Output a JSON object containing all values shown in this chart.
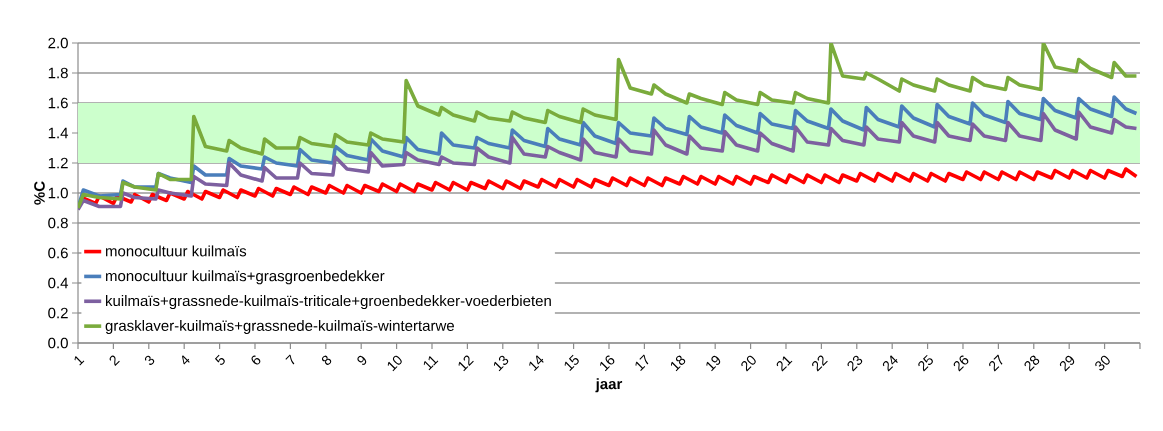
{
  "chart_data": {
    "type": "line",
    "xlabel": "jaar",
    "ylabel": "%C",
    "xlim": [
      1,
      31
    ],
    "xticks": [
      1,
      2,
      3,
      4,
      5,
      6,
      7,
      8,
      9,
      10,
      11,
      12,
      13,
      14,
      15,
      16,
      17,
      18,
      19,
      20,
      21,
      22,
      23,
      24,
      25,
      26,
      27,
      28,
      29,
      30,
      {
        "value": 31,
        "label": null
      }
    ],
    "ylim": [
      0,
      2
    ],
    "yticks": [
      {
        "value": 0,
        "label": "0.0"
      },
      {
        "value": 0.2,
        "label": "0.2"
      },
      {
        "value": 0.4,
        "label": "0.4"
      },
      {
        "value": 0.6,
        "label": "0.6"
      },
      {
        "value": 0.8,
        "label": "0.8"
      },
      {
        "value": 1.0,
        "label": "1.0"
      },
      {
        "value": 1.2,
        "label": "1.2"
      },
      {
        "value": 1.4,
        "label": "1.4"
      },
      {
        "value": 1.6,
        "label": "1.6"
      },
      {
        "value": 1.8,
        "label": "1.8"
      },
      {
        "value": 2.0,
        "label": "2.0"
      }
    ],
    "grid": "y",
    "legend": "bottom left",
    "marker": "none",
    "bands": [
      {
        "axis": "y",
        "from": 1.2,
        "to": 1.6,
        "color": "#ccffcc"
      }
    ],
    "series": [
      {
        "name": "monocultuur kuilmaïs",
        "color": "#ff0000",
        "x": [
          1.1,
          1.5,
          1.6,
          2.0,
          2.1,
          2.5,
          2.6,
          3.0,
          3.1,
          3.5,
          3.6,
          4.0,
          4.1,
          4.5,
          4.6,
          5.0,
          5.1,
          5.5,
          5.6,
          6.0,
          6.1,
          6.5,
          6.6,
          7.0,
          7.1,
          7.5,
          7.6,
          8.0,
          8.1,
          8.5,
          8.6,
          9.0,
          9.1,
          9.5,
          9.6,
          10.0,
          10.1,
          10.5,
          10.6,
          11.0,
          11.1,
          11.5,
          11.6,
          12.0,
          12.1,
          12.5,
          12.6,
          13.0,
          13.1,
          13.5,
          13.6,
          14.0,
          14.1,
          14.5,
          14.6,
          15.0,
          15.1,
          15.5,
          15.6,
          16.0,
          16.1,
          16.5,
          16.6,
          17.0,
          17.1,
          17.5,
          17.6,
          18.0,
          18.1,
          18.5,
          18.6,
          19.0,
          19.1,
          19.5,
          19.6,
          20.0,
          20.1,
          20.5,
          20.6,
          21.0,
          21.1,
          21.5,
          21.6,
          22.0,
          22.1,
          22.5,
          22.6,
          23.0,
          23.1,
          23.5,
          23.6,
          24.0,
          24.1,
          24.5,
          24.6,
          25.0,
          25.1,
          25.5,
          25.6,
          26.0,
          26.1,
          26.5,
          26.6,
          27.0,
          27.1,
          27.5,
          27.6,
          28.0,
          28.1,
          28.5,
          28.6,
          29.0,
          29.1,
          29.5,
          29.6,
          30.0,
          30.1,
          30.5,
          30.6,
          30.9
        ],
        "values": [
          0.97,
          0.93,
          0.98,
          0.93,
          0.98,
          0.94,
          0.99,
          0.94,
          0.99,
          0.95,
          1.0,
          0.96,
          1.01,
          0.96,
          1.01,
          0.97,
          1.02,
          0.97,
          1.02,
          0.98,
          1.03,
          0.98,
          1.03,
          0.99,
          1.04,
          0.99,
          1.04,
          1.0,
          1.05,
          1.0,
          1.05,
          1.0,
          1.05,
          1.01,
          1.06,
          1.01,
          1.06,
          1.01,
          1.06,
          1.02,
          1.07,
          1.02,
          1.07,
          1.02,
          1.07,
          1.03,
          1.08,
          1.03,
          1.08,
          1.03,
          1.08,
          1.04,
          1.09,
          1.04,
          1.09,
          1.04,
          1.09,
          1.04,
          1.09,
          1.05,
          1.1,
          1.05,
          1.1,
          1.05,
          1.1,
          1.05,
          1.1,
          1.06,
          1.11,
          1.06,
          1.11,
          1.06,
          1.11,
          1.06,
          1.11,
          1.06,
          1.11,
          1.07,
          1.12,
          1.07,
          1.12,
          1.07,
          1.12,
          1.07,
          1.12,
          1.07,
          1.12,
          1.08,
          1.13,
          1.08,
          1.13,
          1.08,
          1.13,
          1.08,
          1.13,
          1.08,
          1.13,
          1.08,
          1.13,
          1.09,
          1.14,
          1.09,
          1.14,
          1.09,
          1.14,
          1.09,
          1.14,
          1.09,
          1.14,
          1.1,
          1.15,
          1.1,
          1.15,
          1.1,
          1.15,
          1.1,
          1.15,
          1.11,
          1.16,
          1.11
        ]
      },
      {
        "name": "monocultuur kuilmaïs+grasgroenbedekker",
        "color": "#4a7ebb",
        "x": [
          1.0,
          1.15,
          1.6,
          2.2,
          2.27,
          2.6,
          3.2,
          3.27,
          3.6,
          4.2,
          4.27,
          4.6,
          5.2,
          5.27,
          5.6,
          6.2,
          6.27,
          6.6,
          7.2,
          7.27,
          7.6,
          8.2,
          8.27,
          8.6,
          9.2,
          9.27,
          9.6,
          10.2,
          10.27,
          10.6,
          11.2,
          11.27,
          11.6,
          12.2,
          12.27,
          12.6,
          13.2,
          13.27,
          13.6,
          14.2,
          14.27,
          14.6,
          15.2,
          15.27,
          15.6,
          16.2,
          16.27,
          16.6,
          17.2,
          17.27,
          17.6,
          18.2,
          18.27,
          18.6,
          19.2,
          19.27,
          19.6,
          20.2,
          20.27,
          20.6,
          21.2,
          21.27,
          21.6,
          22.2,
          22.27,
          22.6,
          23.2,
          23.27,
          23.6,
          24.2,
          24.27,
          24.6,
          25.2,
          25.27,
          25.6,
          26.2,
          26.27,
          26.6,
          27.2,
          27.27,
          27.6,
          28.2,
          28.27,
          28.6,
          29.2,
          29.27,
          29.6,
          30.2,
          30.27,
          30.6,
          30.9
        ],
        "values": [
          0.9,
          1.02,
          0.98,
          0.99,
          1.08,
          1.04,
          1.04,
          1.13,
          1.1,
          1.07,
          1.18,
          1.12,
          1.12,
          1.23,
          1.18,
          1.16,
          1.24,
          1.2,
          1.18,
          1.29,
          1.22,
          1.2,
          1.31,
          1.25,
          1.22,
          1.36,
          1.28,
          1.24,
          1.37,
          1.29,
          1.26,
          1.4,
          1.32,
          1.3,
          1.37,
          1.33,
          1.3,
          1.42,
          1.35,
          1.31,
          1.43,
          1.36,
          1.32,
          1.47,
          1.38,
          1.33,
          1.47,
          1.4,
          1.38,
          1.5,
          1.43,
          1.39,
          1.51,
          1.44,
          1.4,
          1.52,
          1.45,
          1.4,
          1.53,
          1.46,
          1.43,
          1.55,
          1.48,
          1.43,
          1.56,
          1.48,
          1.42,
          1.57,
          1.49,
          1.44,
          1.58,
          1.5,
          1.44,
          1.59,
          1.51,
          1.46,
          1.6,
          1.52,
          1.47,
          1.61,
          1.53,
          1.49,
          1.63,
          1.55,
          1.5,
          1.63,
          1.56,
          1.51,
          1.64,
          1.56,
          1.53
        ]
      },
      {
        "name": "kuilmaïs+grassnede-kuilmaïs-triticale+groenbedekker-voederbieten",
        "color": "#7d60a0",
        "x": [
          1.0,
          1.15,
          1.6,
          2.2,
          2.27,
          2.6,
          3.2,
          3.27,
          3.6,
          4.2,
          4.27,
          4.6,
          5.2,
          5.27,
          5.6,
          6.2,
          6.27,
          6.6,
          7.2,
          7.27,
          7.6,
          8.2,
          8.27,
          8.6,
          9.2,
          9.27,
          9.6,
          10.2,
          10.27,
          10.6,
          11.2,
          11.27,
          11.6,
          12.2,
          12.27,
          12.6,
          13.2,
          13.27,
          13.6,
          14.2,
          14.27,
          14.6,
          15.2,
          15.27,
          15.6,
          16.2,
          16.27,
          16.6,
          17.2,
          17.27,
          17.6,
          18.2,
          18.27,
          18.6,
          19.2,
          19.27,
          19.6,
          20.2,
          20.27,
          20.6,
          21.2,
          21.27,
          21.6,
          22.2,
          22.27,
          22.6,
          23.2,
          23.27,
          23.6,
          24.2,
          24.27,
          24.6,
          25.2,
          25.27,
          25.6,
          26.2,
          26.27,
          26.6,
          27.2,
          27.27,
          27.6,
          28.2,
          28.27,
          28.6,
          29.2,
          29.27,
          29.6,
          30.2,
          30.27,
          30.6,
          30.9
        ],
        "values": [
          0.89,
          0.95,
          0.91,
          0.91,
          1.0,
          0.97,
          0.96,
          1.02,
          1.0,
          0.98,
          1.11,
          1.06,
          1.05,
          1.2,
          1.12,
          1.08,
          1.17,
          1.1,
          1.1,
          1.2,
          1.13,
          1.12,
          1.24,
          1.16,
          1.14,
          1.27,
          1.18,
          1.19,
          1.27,
          1.22,
          1.19,
          1.24,
          1.2,
          1.19,
          1.3,
          1.24,
          1.2,
          1.37,
          1.26,
          1.24,
          1.31,
          1.27,
          1.22,
          1.36,
          1.27,
          1.24,
          1.36,
          1.28,
          1.26,
          1.42,
          1.32,
          1.26,
          1.38,
          1.3,
          1.28,
          1.41,
          1.32,
          1.28,
          1.4,
          1.33,
          1.28,
          1.44,
          1.34,
          1.32,
          1.43,
          1.35,
          1.32,
          1.44,
          1.36,
          1.34,
          1.47,
          1.38,
          1.34,
          1.47,
          1.38,
          1.35,
          1.46,
          1.38,
          1.35,
          1.47,
          1.38,
          1.35,
          1.53,
          1.42,
          1.36,
          1.54,
          1.44,
          1.4,
          1.49,
          1.44,
          1.43
        ]
      },
      {
        "name": "grasklaver-kuilmaïs+grassnede-kuilmaïs-wintertarwe",
        "color": "#7aab3c",
        "x": [
          1.0,
          1.15,
          1.6,
          2.2,
          2.27,
          2.6,
          3.2,
          3.27,
          3.6,
          4.2,
          4.27,
          4.6,
          5.2,
          5.27,
          5.6,
          6.2,
          6.27,
          6.6,
          7.2,
          7.27,
          7.6,
          8.2,
          8.27,
          8.6,
          9.2,
          9.27,
          9.6,
          10.2,
          10.27,
          10.6,
          11.2,
          11.27,
          11.6,
          12.2,
          12.27,
          12.6,
          13.2,
          13.27,
          13.6,
          14.2,
          14.27,
          14.6,
          15.2,
          15.27,
          15.6,
          16.2,
          16.27,
          16.6,
          17.2,
          17.27,
          17.6,
          18.2,
          18.27,
          18.6,
          19.2,
          19.27,
          19.6,
          20.2,
          20.27,
          20.6,
          21.2,
          21.27,
          21.6,
          22.2,
          22.27,
          22.6,
          23.2,
          23.27,
          23.6,
          24.2,
          24.27,
          24.6,
          25.2,
          25.27,
          25.6,
          26.2,
          26.27,
          26.6,
          27.2,
          27.27,
          27.6,
          28.2,
          28.27,
          28.6,
          29.2,
          29.27,
          29.6,
          30.2,
          30.27,
          30.6,
          30.9
        ],
        "values": [
          0.9,
          0.99,
          0.97,
          0.96,
          1.07,
          1.04,
          1.02,
          1.13,
          1.09,
          1.09,
          1.51,
          1.31,
          1.28,
          1.35,
          1.3,
          1.26,
          1.36,
          1.3,
          1.3,
          1.37,
          1.33,
          1.31,
          1.39,
          1.34,
          1.32,
          1.4,
          1.36,
          1.34,
          1.75,
          1.58,
          1.52,
          1.57,
          1.52,
          1.48,
          1.54,
          1.5,
          1.48,
          1.54,
          1.5,
          1.47,
          1.55,
          1.51,
          1.47,
          1.56,
          1.52,
          1.49,
          1.89,
          1.7,
          1.66,
          1.72,
          1.66,
          1.6,
          1.66,
          1.63,
          1.59,
          1.67,
          1.62,
          1.59,
          1.67,
          1.62,
          1.6,
          1.67,
          1.63,
          1.6,
          2.0,
          1.78,
          1.76,
          1.8,
          1.76,
          1.68,
          1.76,
          1.72,
          1.68,
          1.76,
          1.72,
          1.68,
          1.77,
          1.72,
          1.69,
          1.77,
          1.72,
          1.69,
          2.0,
          1.84,
          1.81,
          1.89,
          1.83,
          1.77,
          1.87,
          1.78,
          1.78
        ]
      }
    ]
  }
}
